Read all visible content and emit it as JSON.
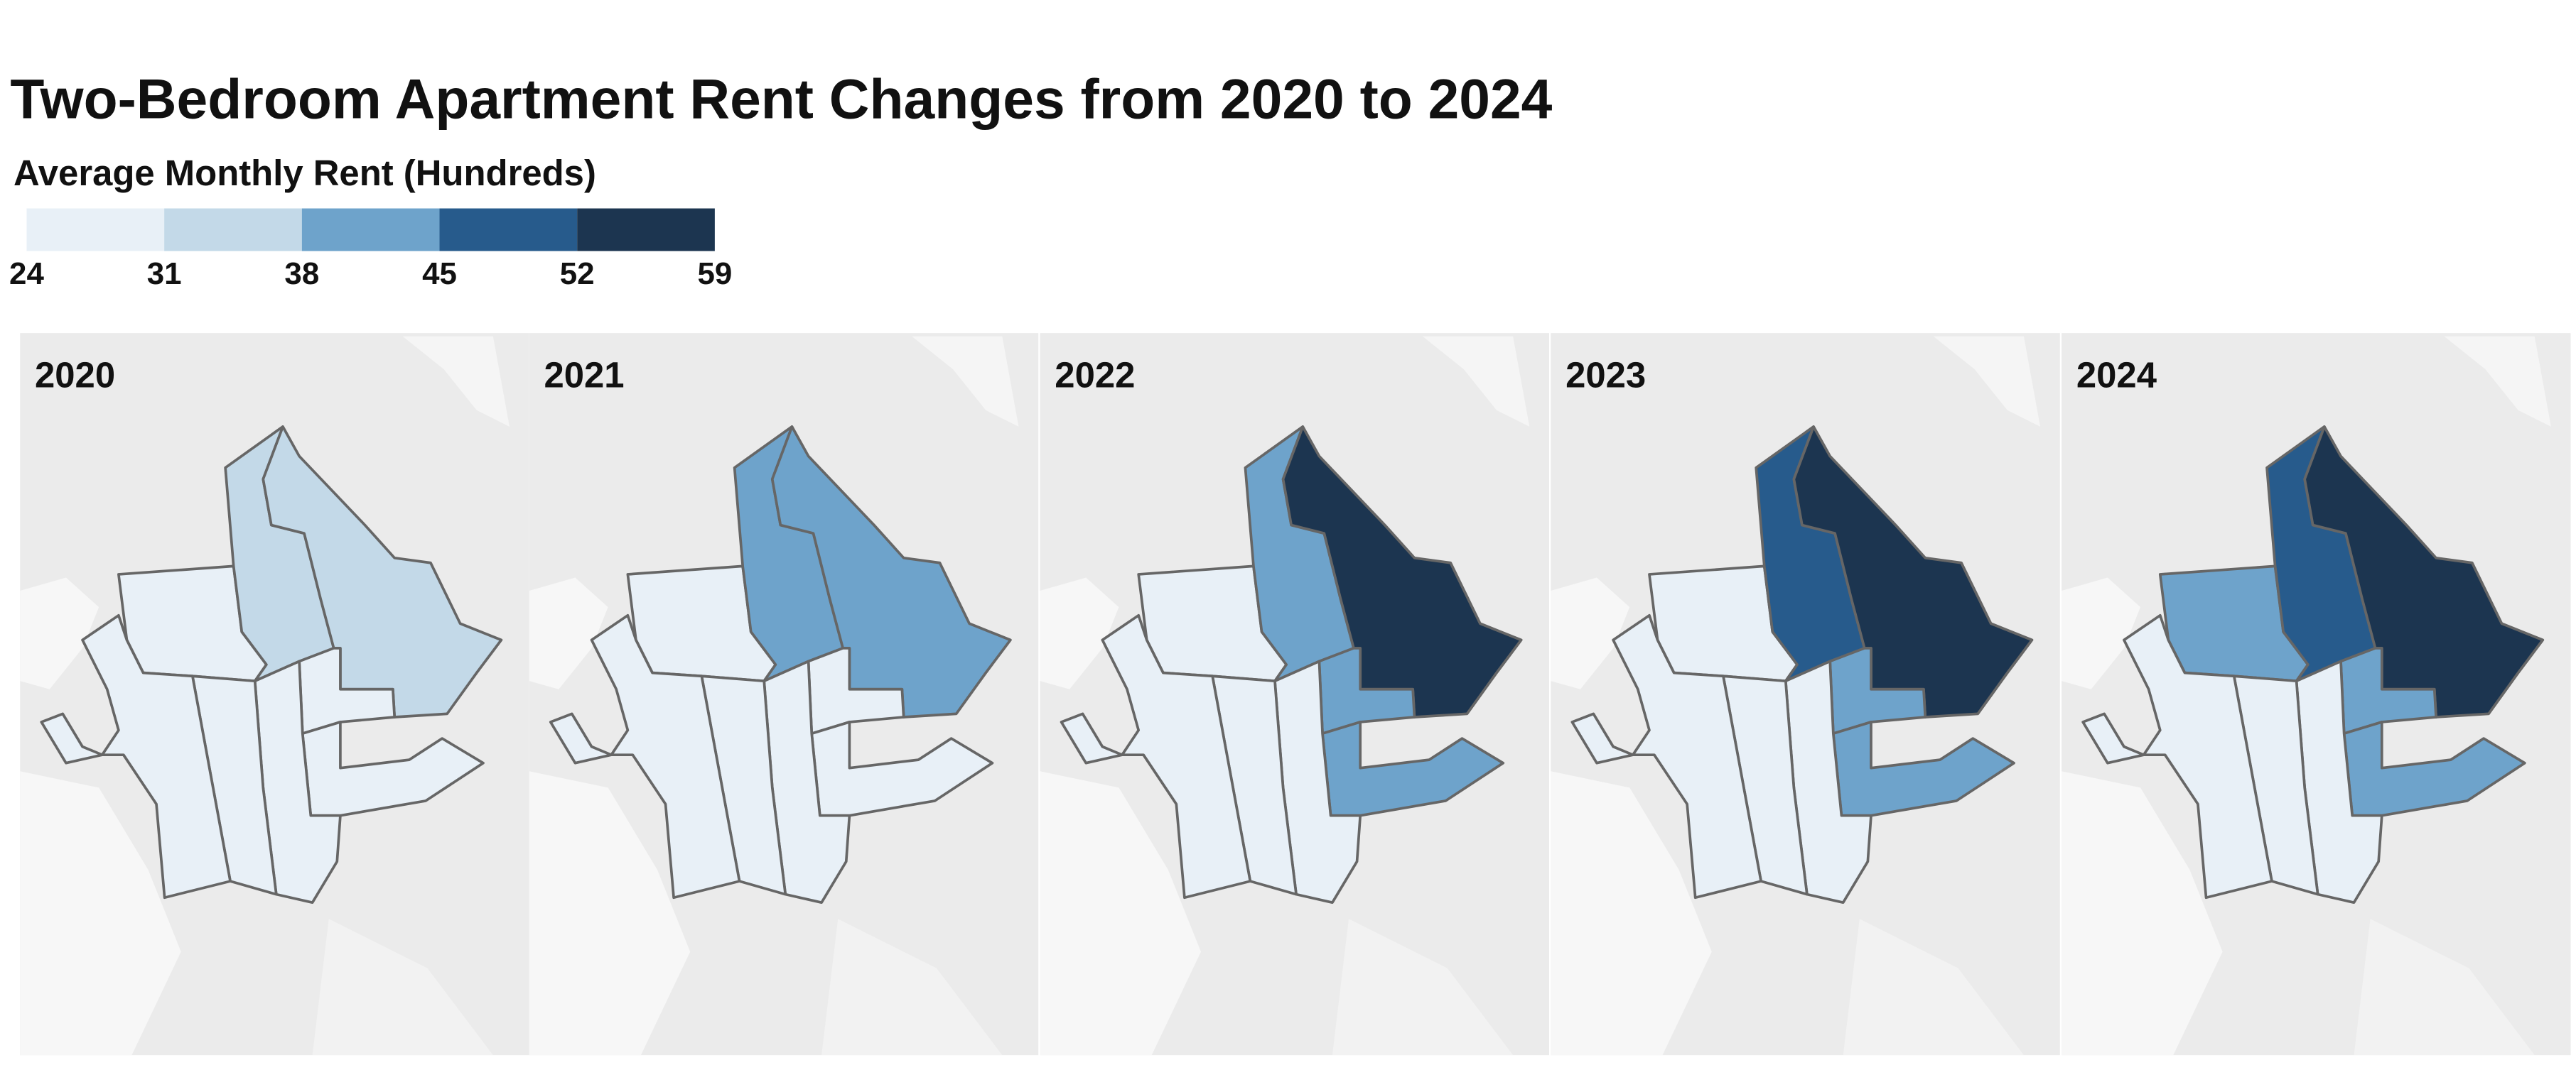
{
  "title": "Two-Bedroom Apartment Rent Changes from 2020 to 2024",
  "legend": {
    "title": "Average Monthly Rent (Hundreds)",
    "breaks": [
      24,
      31,
      38,
      45,
      52,
      59
    ],
    "colors": [
      "#e8f0f7",
      "#c3d9e8",
      "#6ea3cb",
      "#275b8c",
      "#1c3550"
    ]
  },
  "panels": [
    {
      "label": "2020",
      "values": [
        28,
        34,
        35,
        28,
        27,
        27,
        26,
        26
      ]
    },
    {
      "label": "2021",
      "values": [
        29,
        41,
        42,
        30,
        29,
        28,
        27,
        27
      ]
    },
    {
      "label": "2022",
      "values": [
        30,
        43,
        55,
        40,
        40,
        29,
        28,
        28
      ]
    },
    {
      "label": "2023",
      "values": [
        30,
        48,
        57,
        42,
        42,
        30,
        29,
        29
      ]
    },
    {
      "label": "2024",
      "values": [
        40,
        50,
        58,
        43,
        43,
        30,
        30,
        30
      ]
    }
  ]
}
